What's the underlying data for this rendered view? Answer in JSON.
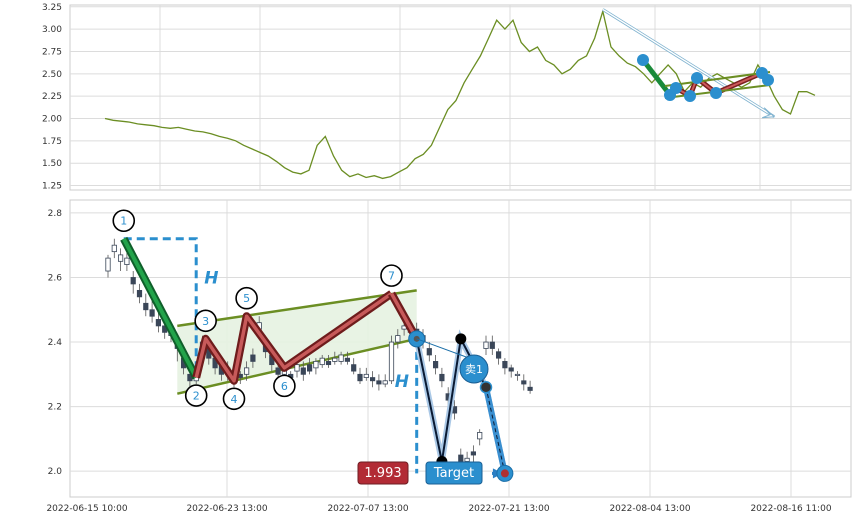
{
  "chart_data": [
    {
      "type": "line",
      "panel": "overview",
      "ylim": [
        1.2,
        3.27
      ],
      "yticks": [
        "1.25",
        "1.50",
        "1.75",
        "2.00",
        "2.25",
        "2.50",
        "2.75",
        "3.00",
        "3.25"
      ],
      "series_color": "#6b8e23",
      "points": [
        [
          0,
          2.0
        ],
        [
          1,
          1.98
        ],
        [
          2,
          1.97
        ],
        [
          3,
          1.96
        ],
        [
          4,
          1.94
        ],
        [
          5,
          1.93
        ],
        [
          6,
          1.92
        ],
        [
          7,
          1.9
        ],
        [
          8,
          1.89
        ],
        [
          9,
          1.9
        ],
        [
          10,
          1.88
        ],
        [
          11,
          1.86
        ],
        [
          12,
          1.85
        ],
        [
          13,
          1.83
        ],
        [
          14,
          1.8
        ],
        [
          15,
          1.78
        ],
        [
          16,
          1.75
        ],
        [
          17,
          1.7
        ],
        [
          18,
          1.66
        ],
        [
          19,
          1.62
        ],
        [
          20,
          1.58
        ],
        [
          21,
          1.52
        ],
        [
          22,
          1.45
        ],
        [
          23,
          1.4
        ],
        [
          24,
          1.38
        ],
        [
          25,
          1.42
        ],
        [
          26,
          1.7
        ],
        [
          27,
          1.8
        ],
        [
          28,
          1.58
        ],
        [
          29,
          1.42
        ],
        [
          30,
          1.35
        ],
        [
          31,
          1.38
        ],
        [
          32,
          1.34
        ],
        [
          33,
          1.36
        ],
        [
          34,
          1.33
        ],
        [
          35,
          1.35
        ],
        [
          36,
          1.4
        ],
        [
          37,
          1.45
        ],
        [
          38,
          1.55
        ],
        [
          39,
          1.6
        ],
        [
          40,
          1.7
        ],
        [
          41,
          1.9
        ],
        [
          42,
          2.1
        ],
        [
          43,
          2.2
        ],
        [
          44,
          2.4
        ],
        [
          45,
          2.55
        ],
        [
          46,
          2.7
        ],
        [
          47,
          2.9
        ],
        [
          48,
          3.1
        ],
        [
          49,
          3.0
        ],
        [
          50,
          3.1
        ],
        [
          51,
          2.85
        ],
        [
          52,
          2.75
        ],
        [
          53,
          2.8
        ],
        [
          54,
          2.65
        ],
        [
          55,
          2.6
        ],
        [
          56,
          2.5
        ],
        [
          57,
          2.55
        ],
        [
          58,
          2.65
        ],
        [
          59,
          2.7
        ],
        [
          60,
          2.9
        ],
        [
          61,
          3.2
        ],
        [
          62,
          2.8
        ],
        [
          63,
          2.7
        ],
        [
          64,
          2.62
        ],
        [
          65,
          2.58
        ],
        [
          66,
          2.5
        ],
        [
          67,
          2.4
        ],
        [
          68,
          2.5
        ],
        [
          69,
          2.6
        ],
        [
          70,
          2.5
        ],
        [
          71,
          2.3
        ],
        [
          72,
          2.4
        ],
        [
          73,
          2.35
        ],
        [
          74,
          2.45
        ],
        [
          75,
          2.5
        ],
        [
          76,
          2.45
        ],
        [
          77,
          2.4
        ],
        [
          78,
          2.35
        ],
        [
          79,
          2.4
        ],
        [
          80,
          2.6
        ],
        [
          81,
          2.45
        ],
        [
          82,
          2.25
        ],
        [
          83,
          2.1
        ],
        [
          84,
          2.05
        ],
        [
          85,
          2.3
        ],
        [
          86,
          2.3
        ],
        [
          87,
          2.26
        ]
      ],
      "arrow": {
        "from": [
          61,
          3.22
        ],
        "to": [
          82,
          2.02
        ]
      }
    },
    {
      "type": "pattern",
      "panel": "detail",
      "ylim": [
        1.92,
        2.84
      ],
      "yticks": [
        "2.0",
        "2.2",
        "2.4",
        "2.6",
        "2.8"
      ],
      "xticks": [
        "2022-06-15 10:00",
        "2022-06-23 13:00",
        "2022-07-07 13:00",
        "2022-07-21 13:00",
        "2022-08-04 13:00",
        "2022-08-16 11:00"
      ],
      "candles": [
        [
          0,
          2.62,
          2.66,
          2.6,
          2.67
        ],
        [
          1,
          2.68,
          2.7,
          2.66,
          2.72
        ],
        [
          2,
          2.65,
          2.67,
          2.62,
          2.69
        ],
        [
          3,
          2.64,
          2.66,
          2.62,
          2.68
        ],
        [
          4,
          2.6,
          2.58,
          2.55,
          2.62
        ],
        [
          5,
          2.56,
          2.54,
          2.52,
          2.58
        ],
        [
          6,
          2.52,
          2.5,
          2.48,
          2.55
        ],
        [
          7,
          2.5,
          2.48,
          2.46,
          2.53
        ],
        [
          8,
          2.47,
          2.45,
          2.43,
          2.49
        ],
        [
          9,
          2.45,
          2.43,
          2.41,
          2.47
        ],
        [
          10,
          2.42,
          2.44,
          2.4,
          2.46
        ],
        [
          11,
          2.4,
          2.38,
          2.34,
          2.42
        ],
        [
          12,
          2.35,
          2.32,
          2.3,
          2.38
        ],
        [
          13,
          2.3,
          2.28,
          2.26,
          2.32
        ],
        [
          14,
          2.28,
          2.3,
          2.27,
          2.32
        ],
        [
          15,
          2.35,
          2.4,
          2.34,
          2.42
        ],
        [
          16,
          2.38,
          2.35,
          2.33,
          2.4
        ],
        [
          17,
          2.35,
          2.32,
          2.3,
          2.37
        ],
        [
          18,
          2.33,
          2.3,
          2.28,
          2.35
        ],
        [
          19,
          2.3,
          2.32,
          2.28,
          2.34
        ],
        [
          20,
          2.3,
          2.28,
          2.26,
          2.33
        ],
        [
          21,
          2.3,
          2.29,
          2.27,
          2.31
        ],
        [
          22,
          2.3,
          2.32,
          2.28,
          2.34
        ],
        [
          23,
          2.36,
          2.34,
          2.32,
          2.38
        ],
        [
          24,
          2.44,
          2.46,
          2.42,
          2.48
        ],
        [
          25,
          2.4,
          2.37,
          2.35,
          2.42
        ],
        [
          26,
          2.36,
          2.33,
          2.31,
          2.38
        ],
        [
          27,
          2.32,
          2.3,
          2.28,
          2.34
        ],
        [
          28,
          2.3,
          2.31,
          2.29,
          2.33
        ],
        [
          29,
          2.3,
          2.29,
          2.27,
          2.31
        ],
        [
          30,
          2.31,
          2.33,
          2.29,
          2.34
        ],
        [
          31,
          2.32,
          2.3,
          2.28,
          2.34
        ],
        [
          32,
          2.33,
          2.31,
          2.3,
          2.35
        ],
        [
          33,
          2.32,
          2.34,
          2.3,
          2.35
        ],
        [
          34,
          2.33,
          2.35,
          2.32,
          2.36
        ],
        [
          35,
          2.34,
          2.33,
          2.32,
          2.36
        ],
        [
          36,
          2.34,
          2.35,
          2.33,
          2.37
        ],
        [
          37,
          2.34,
          2.36,
          2.33,
          2.37
        ],
        [
          38,
          2.35,
          2.34,
          2.33,
          2.37
        ],
        [
          39,
          2.33,
          2.31,
          2.3,
          2.35
        ],
        [
          40,
          2.3,
          2.28,
          2.27,
          2.32
        ],
        [
          41,
          2.29,
          2.3,
          2.28,
          2.32
        ],
        [
          42,
          2.29,
          2.28,
          2.26,
          2.31
        ],
        [
          43,
          2.28,
          2.27,
          2.25,
          2.3
        ],
        [
          44,
          2.27,
          2.28,
          2.26,
          2.3
        ],
        [
          45,
          2.28,
          2.4,
          2.27,
          2.42
        ],
        [
          46,
          2.4,
          2.42,
          2.38,
          2.44
        ],
        [
          47,
          2.44,
          2.45,
          2.42,
          2.47
        ],
        [
          48,
          2.45,
          2.43,
          2.41,
          2.47
        ],
        [
          49,
          2.44,
          2.42,
          2.4,
          2.46
        ],
        [
          50,
          2.42,
          2.4,
          2.38,
          2.44
        ],
        [
          51,
          2.38,
          2.36,
          2.34,
          2.4
        ],
        [
          52,
          2.34,
          2.32,
          2.3,
          2.36
        ],
        [
          53,
          2.3,
          2.28,
          2.26,
          2.32
        ],
        [
          54,
          2.24,
          2.22,
          2.2,
          2.26
        ],
        [
          55,
          2.2,
          2.18,
          2.16,
          2.22
        ],
        [
          56,
          2.05,
          2.03,
          2.01,
          2.07
        ],
        [
          57,
          2.03,
          2.04,
          2.02,
          2.06
        ],
        [
          58,
          2.06,
          2.05,
          2.03,
          2.08
        ],
        [
          59,
          2.1,
          2.12,
          2.08,
          2.13
        ],
        [
          60,
          2.38,
          2.4,
          2.36,
          2.42
        ],
        [
          61,
          2.4,
          2.38,
          2.36,
          2.42
        ],
        [
          62,
          2.37,
          2.35,
          2.33,
          2.38
        ],
        [
          63,
          2.34,
          2.32,
          2.3,
          2.35
        ],
        [
          64,
          2.32,
          2.31,
          2.29,
          2.33
        ],
        [
          65,
          2.3,
          2.3,
          2.28,
          2.31
        ],
        [
          66,
          2.28,
          2.27,
          2.25,
          2.3
        ],
        [
          67,
          2.26,
          2.25,
          2.24,
          2.28
        ]
      ],
      "wave_points": [
        {
          "label": "1",
          "x": 2.5,
          "y": 2.72,
          "label_pos": "above"
        },
        {
          "label": "2",
          "x": 14,
          "y": 2.29,
          "label_pos": "below"
        },
        {
          "label": "3",
          "x": 15.5,
          "y": 2.41,
          "label_pos": "above"
        },
        {
          "label": "4",
          "x": 20,
          "y": 2.28,
          "label_pos": "below"
        },
        {
          "label": "5",
          "x": 22,
          "y": 2.48,
          "label_pos": "above"
        },
        {
          "label": "6",
          "x": 28,
          "y": 2.32,
          "label_pos": "below"
        },
        {
          "label": "7",
          "x": 45,
          "y": 2.55,
          "label_pos": "above"
        }
      ],
      "upper_line": [
        [
          11,
          2.45
        ],
        [
          49,
          2.56
        ]
      ],
      "lower_line": [
        [
          11,
          2.24
        ],
        [
          49,
          2.41
        ]
      ],
      "breakout": {
        "x": 49,
        "y": 2.41
      },
      "projection": [
        [
          49,
          2.41
        ],
        [
          53,
          2.03
        ],
        [
          56,
          2.41
        ],
        [
          60,
          2.26
        ],
        [
          63,
          1.993
        ]
      ],
      "height_markers": [
        {
          "label": "H",
          "from": [
            2.5,
            2.72
          ],
          "corner": [
            14,
            2.72
          ],
          "to": [
            14,
            2.29
          ]
        },
        {
          "label": "H",
          "from": [
            49,
            2.41
          ],
          "to": [
            49,
            1.993
          ]
        }
      ],
      "sell_label": "卖1",
      "target_label": "Target",
      "target_value": "1.993",
      "target_y": 1.993
    }
  ]
}
